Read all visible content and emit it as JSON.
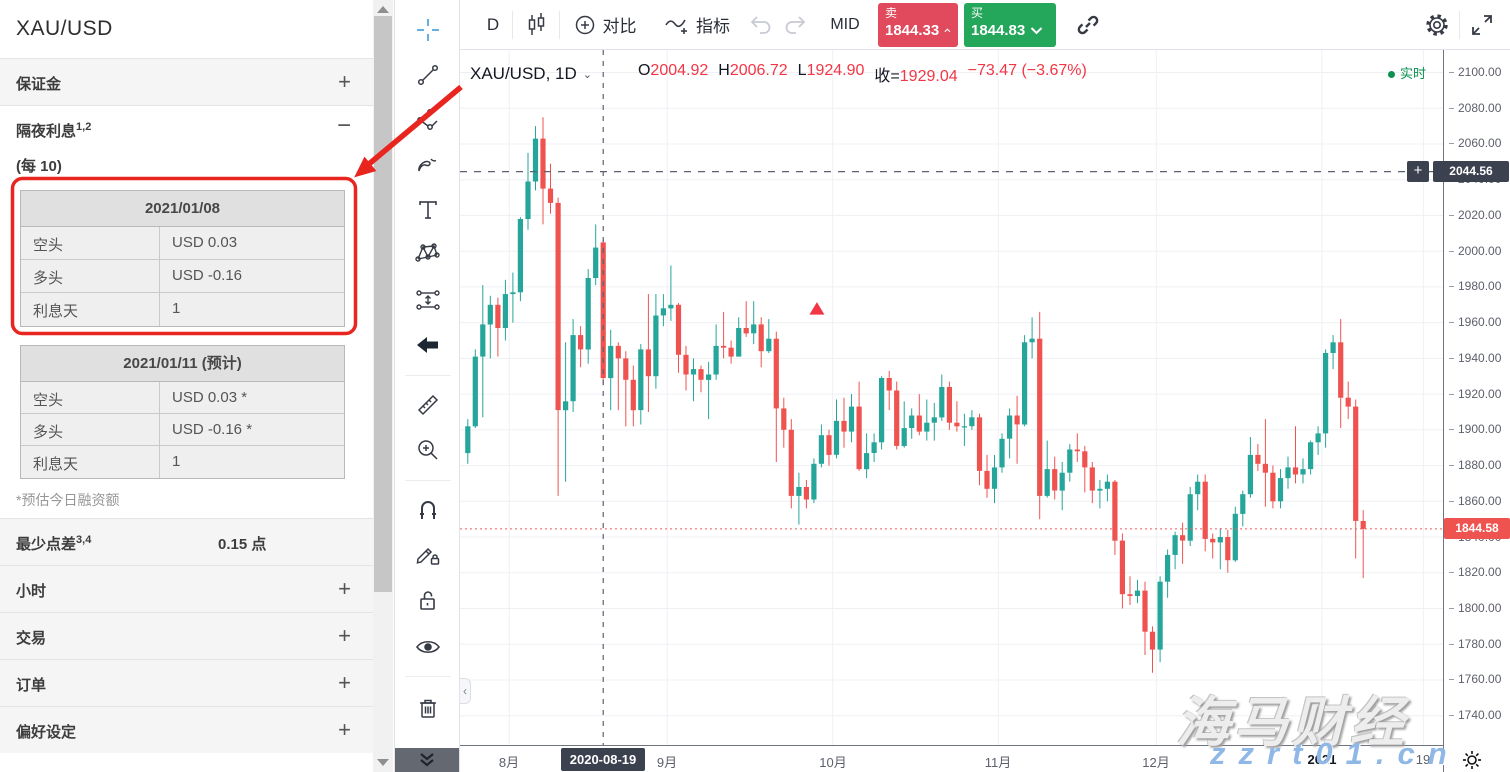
{
  "sidebar": {
    "title": "XAU/USD",
    "sections": [
      {
        "label": "保证金",
        "sup": "",
        "action": "+"
      },
      {
        "label": "隔夜利息",
        "sup": "1,2",
        "action": "−"
      }
    ],
    "per_note": "(每 10)",
    "tables": [
      {
        "header": "2021/01/08",
        "rows": [
          {
            "label": "空头",
            "value": "USD 0.03"
          },
          {
            "label": "多头",
            "value": "USD -0.16"
          },
          {
            "label": "利息天",
            "value": "1"
          }
        ]
      },
      {
        "header": "2021/01/11 (预计)",
        "rows": [
          {
            "label": "空头",
            "value": "USD 0.03 *"
          },
          {
            "label": "多头",
            "value": "USD -0.16 *"
          },
          {
            "label": "利息天",
            "value": "1"
          }
        ]
      }
    ],
    "footnote": "*预估今日融资额",
    "spread": {
      "label": "最少点差",
      "sup": "3,4",
      "value": "0.15 点"
    },
    "bottom_sections": [
      {
        "label": "小时",
        "action": "+"
      },
      {
        "label": "交易",
        "action": "+"
      },
      {
        "label": "订单",
        "action": "+"
      },
      {
        "label": "偏好设定",
        "action": "+"
      }
    ]
  },
  "drawing_toolbar": {
    "icons": [
      "crosshair",
      "trend-line",
      "fib-lines",
      "brush",
      "text",
      "xabcd-pattern",
      "projection",
      "arrow-marker",
      "ruler",
      "zoom-in",
      "magnet",
      "drawing-mode-lock",
      "lock-all",
      "hide-all",
      "remove-all",
      "more-tools"
    ]
  },
  "top_toolbar": {
    "interval": "D",
    "compare_label": "对比",
    "indicators_label": "指标",
    "mid_label": "MID",
    "sell": {
      "label": "卖",
      "price": "1844.33"
    },
    "buy": {
      "label": "买",
      "price": "1844.83"
    },
    "colors": {
      "sell": "#e1495c",
      "buy": "#24a65b"
    }
  },
  "chart": {
    "legend": {
      "symbol": "XAU/USD, 1D",
      "o_label": "O",
      "o": "2004.92",
      "h_label": "H",
      "h": "2006.72",
      "l_label": "L",
      "l": "1924.90",
      "c_label": "收=",
      "c": "1929.04",
      "change": "−73.47 (−3.67%)"
    },
    "realtime": "实时"
  },
  "watermark": {
    "line1": "海马财经",
    "line2": "zzrt01.cn"
  },
  "chart_data": {
    "type": "candlestick",
    "symbol": "XAU/USD",
    "interval": "1D",
    "ylim": [
      1723.6,
      2112.6
    ],
    "y_ticks": [
      2100,
      2080,
      2060,
      2040,
      2020,
      2000,
      1980,
      1960,
      1940,
      1920,
      1900,
      1880,
      1860,
      1840,
      1820,
      1800,
      1780,
      1760,
      1740
    ],
    "x_ticks": [
      {
        "label": "8月",
        "i": 6
      },
      {
        "label": "9月",
        "i": 27
      },
      {
        "label": "10月",
        "i": 49
      },
      {
        "label": "11月",
        "i": 71
      },
      {
        "label": "12月",
        "i": 92
      },
      {
        "label": "2021",
        "i": 114,
        "bold": true
      },
      {
        "label": "19",
        "i": 127.5
      }
    ],
    "crosshair": {
      "index": 18,
      "date_label": "2020-08-19",
      "price": 2044.56,
      "price_label": "2044.56"
    },
    "last_price": 1844.58,
    "last_price_label": "1844.58",
    "marker": {
      "i": 46.9,
      "price": 1967
    },
    "colors": {
      "up": "#26a69a",
      "down": "#ef5350"
    },
    "candles": [
      [
        1887,
        1906,
        1881,
        1902
      ],
      [
        1902,
        1945,
        1901,
        1941
      ],
      [
        1941,
        1981,
        1907,
        1959
      ],
      [
        1959,
        1975,
        1940,
        1970
      ],
      [
        1970,
        1974,
        1941,
        1957
      ],
      [
        1957,
        1984,
        1950,
        1976
      ],
      [
        1976,
        1988,
        1960,
        1977
      ],
      [
        1977,
        2019,
        1972,
        2018
      ],
      [
        2018,
        2055,
        2012,
        2039
      ],
      [
        2039,
        2070,
        2034,
        2063
      ],
      [
        2063,
        2075,
        2015,
        2035
      ],
      [
        2035,
        2049,
        2021,
        2027
      ],
      [
        2027,
        2030,
        1863,
        1911
      ],
      [
        1911,
        1949,
        1871,
        1916
      ],
      [
        1916,
        1962,
        1910,
        1953
      ],
      [
        1953,
        1958,
        1935,
        1945
      ],
      [
        1945,
        1990,
        1937,
        1985
      ],
      [
        1985,
        2015,
        1981,
        2002
      ],
      [
        2004.92,
        2006.72,
        1924.9,
        1929.04
      ],
      [
        1929,
        1956,
        1911,
        1947
      ],
      [
        1947,
        1949,
        1911,
        1940
      ],
      [
        1940,
        1944,
        1902,
        1928
      ],
      [
        1928,
        1936,
        1902,
        1911
      ],
      [
        1911,
        1948,
        1903,
        1945
      ],
      [
        1945,
        1976,
        1910,
        1930
      ],
      [
        1930,
        1976,
        1923,
        1964
      ],
      [
        1964,
        1976,
        1958,
        1968
      ],
      [
        1968,
        1992,
        1961,
        1970
      ],
      [
        1970,
        1971,
        1932,
        1942
      ],
      [
        1942,
        1947,
        1922,
        1931
      ],
      [
        1931,
        1940,
        1916,
        1934
      ],
      [
        1934,
        1936,
        1921,
        1928
      ],
      [
        1928,
        1938,
        1906,
        1931
      ],
      [
        1931,
        1959,
        1928,
        1947
      ],
      [
        1947,
        1966,
        1940,
        1946
      ],
      [
        1946,
        1950,
        1937,
        1941
      ],
      [
        1941,
        1963,
        1941,
        1957
      ],
      [
        1957,
        1972,
        1952,
        1954
      ],
      [
        1954,
        1972,
        1948,
        1959
      ],
      [
        1959,
        1963,
        1935,
        1944
      ],
      [
        1944,
        1962,
        1943,
        1951
      ],
      [
        1951,
        1955,
        1882,
        1912
      ],
      [
        1912,
        1918,
        1890,
        1900
      ],
      [
        1900,
        1906,
        1856,
        1863
      ],
      [
        1863,
        1876,
        1847,
        1868
      ],
      [
        1868,
        1872,
        1856,
        1861
      ],
      [
        1861,
        1884,
        1859,
        1881
      ],
      [
        1881,
        1903,
        1879,
        1897
      ],
      [
        1897,
        1900,
        1880,
        1886
      ],
      [
        1886,
        1917,
        1884,
        1905
      ],
      [
        1905,
        1918,
        1890,
        1899
      ],
      [
        1899,
        1920,
        1893,
        1913
      ],
      [
        1913,
        1927,
        1877,
        1878
      ],
      [
        1878,
        1898,
        1873,
        1887
      ],
      [
        1887,
        1898,
        1882,
        1893
      ],
      [
        1893,
        1930,
        1889,
        1929
      ],
      [
        1929,
        1933,
        1911,
        1922
      ],
      [
        1922,
        1927,
        1889,
        1891
      ],
      [
        1891,
        1916,
        1890,
        1901
      ],
      [
        1901,
        1912,
        1895,
        1908
      ],
      [
        1908,
        1920,
        1897,
        1899
      ],
      [
        1899,
        1917,
        1894,
        1904
      ],
      [
        1904,
        1915,
        1894,
        1907
      ],
      [
        1907,
        1931,
        1905,
        1924
      ],
      [
        1924,
        1927,
        1900,
        1904
      ],
      [
        1904,
        1916,
        1899,
        1902
      ],
      [
        1902,
        1909,
        1891,
        1902
      ],
      [
        1902,
        1911,
        1900,
        1907
      ],
      [
        1907,
        1909,
        1869,
        1877
      ],
      [
        1877,
        1886,
        1862,
        1867
      ],
      [
        1867,
        1886,
        1859,
        1879
      ],
      [
        1879,
        1898,
        1876,
        1895
      ],
      [
        1895,
        1912,
        1884,
        1908
      ],
      [
        1908,
        1919,
        1881,
        1903
      ],
      [
        1903,
        1953,
        1902,
        1949
      ],
      [
        1949,
        1963,
        1940,
        1951
      ],
      [
        1951,
        1966,
        1850,
        1863
      ],
      [
        1863,
        1894,
        1862,
        1878
      ],
      [
        1878,
        1885,
        1861,
        1866
      ],
      [
        1866,
        1882,
        1855,
        1876
      ],
      [
        1876,
        1892,
        1871,
        1889
      ],
      [
        1889,
        1898,
        1882,
        1888
      ],
      [
        1888,
        1891,
        1865,
        1879
      ],
      [
        1879,
        1882,
        1859,
        1866
      ],
      [
        1866,
        1872,
        1856,
        1867
      ],
      [
        1867,
        1875,
        1860,
        1871
      ],
      [
        1871,
        1872,
        1830,
        1838
      ],
      [
        1838,
        1842,
        1800,
        1808
      ],
      [
        1808,
        1818,
        1802,
        1807
      ],
      [
        1807,
        1816,
        1803,
        1810
      ],
      [
        1810,
        1815,
        1774,
        1787
      ],
      [
        1787,
        1790,
        1764,
        1777
      ],
      [
        1777,
        1818,
        1770,
        1815
      ],
      [
        1815,
        1833,
        1806,
        1830
      ],
      [
        1830,
        1843,
        1822,
        1841
      ],
      [
        1841,
        1848,
        1825,
        1838
      ],
      [
        1838,
        1868,
        1835,
        1864
      ],
      [
        1864,
        1875,
        1855,
        1871
      ],
      [
        1871,
        1875,
        1832,
        1839
      ],
      [
        1839,
        1842,
        1828,
        1837
      ],
      [
        1837,
        1845,
        1822,
        1840
      ],
      [
        1840,
        1844,
        1820,
        1827
      ],
      [
        1827,
        1857,
        1826,
        1853
      ],
      [
        1853,
        1866,
        1846,
        1864
      ],
      [
        1864,
        1896,
        1862,
        1886
      ],
      [
        1886,
        1892,
        1877,
        1881
      ],
      [
        1881,
        1906,
        1857,
        1876
      ],
      [
        1876,
        1880,
        1856,
        1860
      ],
      [
        1860,
        1878,
        1856,
        1873
      ],
      [
        1873,
        1885,
        1867,
        1879
      ],
      [
        1879,
        1902,
        1870,
        1875
      ],
      [
        1875,
        1884,
        1870,
        1878
      ],
      [
        1878,
        1894,
        1875,
        1893
      ],
      [
        1893,
        1902,
        1886,
        1898
      ],
      [
        1898,
        1945,
        1890,
        1943
      ],
      [
        1943,
        1953,
        1934,
        1949
      ],
      [
        1949,
        1962,
        1901,
        1918
      ],
      [
        1918,
        1927,
        1906,
        1913
      ],
      [
        1913,
        1917,
        1828,
        1849
      ],
      [
        1849,
        1855,
        1817,
        1844.58
      ]
    ]
  }
}
